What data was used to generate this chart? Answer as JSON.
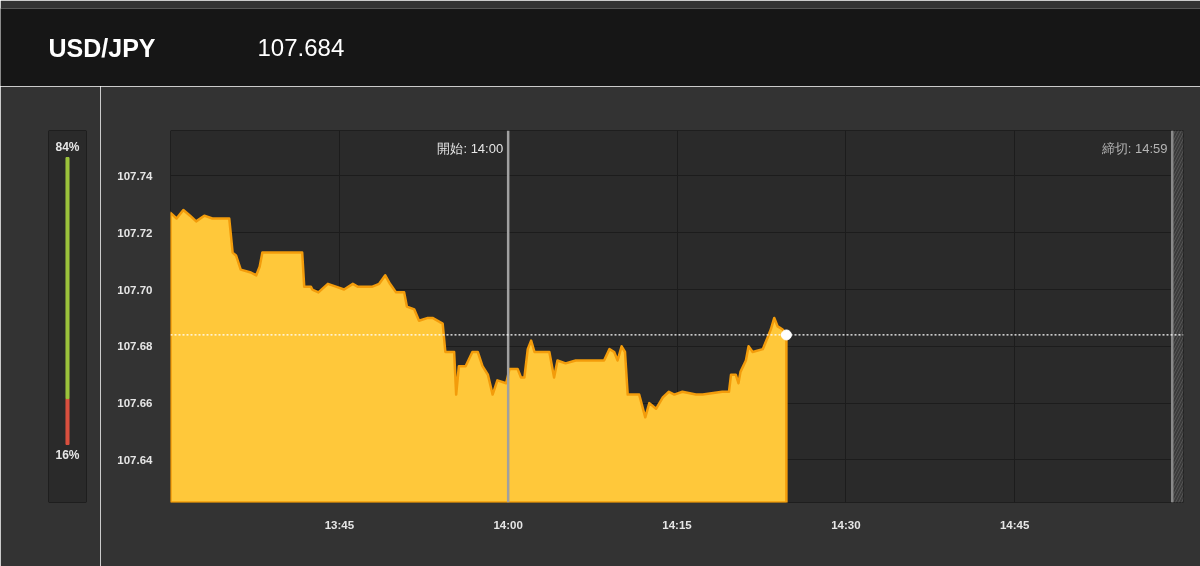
{
  "chart_data": [
    {
      "type": "area",
      "title": "USD/JPY",
      "subtitle": "107.684",
      "x": [
        13.5,
        13.509,
        13.519,
        13.529,
        13.538,
        13.55,
        13.562,
        13.587,
        13.592,
        13.597,
        13.604,
        13.619,
        13.627,
        13.632,
        13.636,
        13.669,
        13.695,
        13.698,
        13.708,
        13.71,
        13.719,
        13.733,
        13.745,
        13.757,
        13.77,
        13.777,
        13.799,
        13.809,
        13.818,
        13.825,
        13.834,
        13.846,
        13.85,
        13.861,
        13.868,
        13.881,
        13.888,
        13.903,
        13.907,
        13.92,
        13.923,
        13.927,
        13.937,
        13.947,
        13.955,
        13.962,
        13.97,
        13.977,
        13.984,
        13.997,
        14.002,
        14.014,
        14.019,
        14.024,
        14.029,
        14.034,
        14.039,
        14.061,
        14.068,
        14.073,
        14.085,
        14.1,
        14.142,
        14.15,
        14.157,
        14.162,
        14.168,
        14.173,
        14.177,
        14.194,
        14.203,
        14.209,
        14.219,
        14.229,
        14.238,
        14.246,
        14.258,
        14.278,
        14.288,
        14.317,
        14.327,
        14.33,
        14.337,
        14.341,
        14.344,
        14.352,
        14.356,
        14.362,
        14.377,
        14.384,
        14.389,
        14.394,
        14.399,
        14.406,
        14.412
      ],
      "series": [
        {
          "color": "#ffc83a",
          "values": [
            107.727,
            107.725,
            107.728,
            107.726,
            107.724,
            107.726,
            107.725,
            107.725,
            107.713,
            107.712,
            107.707,
            107.706,
            107.705,
            107.708,
            107.713,
            107.713,
            107.713,
            107.701,
            107.701,
            107.7,
            107.699,
            107.702,
            107.701,
            107.7,
            107.702,
            107.701,
            107.701,
            107.702,
            107.705,
            107.702,
            107.699,
            107.699,
            107.694,
            107.693,
            107.689,
            107.69,
            107.69,
            107.688,
            107.678,
            107.678,
            107.663,
            107.673,
            107.673,
            107.678,
            107.678,
            107.673,
            107.67,
            107.663,
            107.668,
            107.667,
            107.672,
            107.672,
            107.669,
            107.669,
            107.679,
            107.682,
            107.678,
            107.678,
            107.669,
            107.675,
            107.674,
            107.675,
            107.675,
            107.679,
            107.678,
            107.675,
            107.68,
            107.678,
            107.663,
            107.663,
            107.655,
            107.66,
            107.658,
            107.662,
            107.664,
            107.663,
            107.664,
            107.663,
            107.663,
            107.664,
            107.664,
            107.67,
            107.67,
            107.667,
            107.671,
            107.675,
            107.68,
            107.678,
            107.679,
            107.683,
            107.686,
            107.69,
            107.687,
            107.686,
            107.684
          ]
        },
        {
          "type": "scatter",
          "color": "#ffffff",
          "marker": "circle",
          "x": [
            14.412
          ],
          "values": [
            107.684
          ]
        }
      ],
      "xlim": [
        13.5,
        15.0
      ],
      "ylim": [
        107.625,
        107.756
      ],
      "xticks": [
        {
          "value": 13.75,
          "label": "13:45"
        },
        {
          "value": 14.0,
          "label": "14:00"
        },
        {
          "value": 14.25,
          "label": "14:15"
        },
        {
          "value": 14.5,
          "label": "14:30"
        },
        {
          "value": 14.75,
          "label": "14:45"
        }
      ],
      "yticks": [
        {
          "value": 107.64,
          "label": "107.64"
        },
        {
          "value": 107.66,
          "label": "107.66"
        },
        {
          "value": 107.68,
          "label": "107.68"
        },
        {
          "value": 107.7,
          "label": "107.70"
        },
        {
          "value": 107.72,
          "label": "107.72"
        },
        {
          "value": 107.74,
          "label": "107.74"
        }
      ],
      "grid": true,
      "annotations": [
        "締切: 14:59"
      ],
      "bands": [
        {
          "axis": "x",
          "from": 14.9833,
          "to": 15.0,
          "color": "#3a3a3a"
        }
      ],
      "ref_lines": [
        {
          "axis": "x",
          "value": 14.0,
          "label": "開始: 14:00",
          "color": "#a0a0a0"
        },
        {
          "axis": "x",
          "value": 14.9833,
          "color": "#8a8a8a"
        },
        {
          "axis": "y",
          "value": 107.684,
          "color": "#ffffff",
          "line_style": "dotted"
        }
      ]
    },
    {
      "type": "bar",
      "stacked": true,
      "categories": [
        null
      ],
      "tick_labels": false,
      "series": [
        {
          "color": "#d9503f",
          "values": [
            16
          ],
          "value_labels": [
            "16%"
          ]
        },
        {
          "color": "#9cc33c",
          "values": [
            84
          ],
          "value_labels": [
            "84%"
          ]
        }
      ]
    }
  ]
}
